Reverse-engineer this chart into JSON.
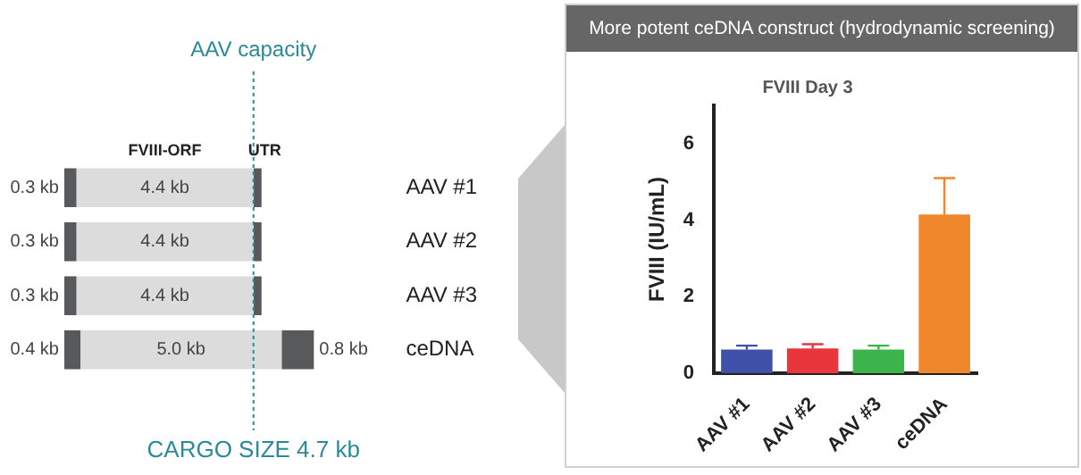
{
  "chart_data": [
    {
      "type": "bar",
      "orientation": "horizontal",
      "stacked": true,
      "categories": [
        "AAV #1",
        "AAV #2",
        "AAV #3",
        "ceDNA"
      ],
      "series": [
        {
          "color": "#58595b",
          "values": [
            0.3,
            0.3,
            0.3,
            0.4
          ],
          "value_labels": [
            "0.3 kb",
            "0.3 kb",
            "0.3 kb",
            "0.4 kb"
          ]
        },
        {
          "color": "#dcdcdc",
          "values": [
            4.4,
            4.4,
            4.4,
            5.0
          ],
          "value_labels": [
            "4.4 kb",
            "4.4 kb",
            "4.4 kb",
            "5.0 kb"
          ]
        },
        {
          "color": "#58595b",
          "values": [
            0.2,
            0.2,
            0.2,
            0.8
          ],
          "value_labels": [
            null,
            null,
            null,
            "0.8 kb"
          ]
        }
      ],
      "ref_lines": [
        {
          "axis": "x",
          "value": 4.7,
          "label": "AAV capacity",
          "color": "#2a8a9a",
          "line_style": "dotted"
        }
      ],
      "annotations": [
        "FVIII-ORF",
        "UTR",
        "CARGO SIZE 4.7 kb"
      ],
      "legend": false,
      "grid": false
    },
    {
      "type": "bar",
      "title": "More potent ceDNA construct (hydrodynamic screening)",
      "subtitle": "FVIII Day 3",
      "ylabel": "FVIII (IU/mL)",
      "categories": [
        "AAV #1",
        "AAV #2",
        "AAV #3",
        "ceDNA"
      ],
      "values": [
        0.62,
        0.65,
        0.62,
        4.15
      ],
      "colors": [
        "#3f51a8",
        "#e8363c",
        "#3cb44b",
        "#f0862b"
      ],
      "errors": [
        [
          0.62,
          0.72
        ],
        [
          0.65,
          0.76
        ],
        [
          0.62,
          0.72
        ],
        [
          4.15,
          5.1
        ]
      ],
      "ylim": [
        0,
        7
      ],
      "yticks": [
        0,
        2,
        4,
        6
      ],
      "legend": false,
      "grid": false
    }
  ]
}
